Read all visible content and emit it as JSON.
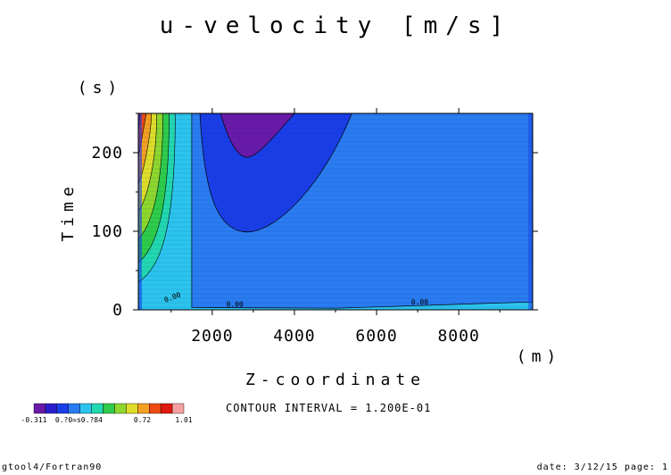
{
  "chart_data": {
    "type": "heatmap",
    "title": "u-velocity [m/s]",
    "xlabel": "Z-coordinate",
    "ylabel": "Time",
    "x_unit": "(m)",
    "y_unit": "(s)",
    "xlim": [
      200,
      9800
    ],
    "ylim": [
      0,
      250
    ],
    "x_ticks": [
      2000,
      4000,
      6000,
      8000
    ],
    "y_ticks": [
      0,
      100,
      200
    ],
    "contour_interval_text": "CONTOUR INTERVAL = 1.200E-01",
    "contour_labels": [
      {
        "text": "0.00",
        "x": 1050,
        "y": 13
      },
      {
        "text": "0.00",
        "x": 2550,
        "y": 4
      },
      {
        "text": "0.00",
        "x": 7050,
        "y": 7
      }
    ],
    "regions": [
      {
        "level_index": 4,
        "note": "near-zero band"
      },
      {
        "level_index": 3,
        "note": "background field"
      },
      {
        "level_index": 2,
        "note": "trough lobe"
      },
      {
        "level_index": 0,
        "note": "minimum core"
      }
    ],
    "colorbar": {
      "colors": [
        "#6a1aa8",
        "#2a1ecc",
        "#1a3ee6",
        "#2a7cf0",
        "#2cc4ee",
        "#22d8b0",
        "#2ecc4a",
        "#8ed82e",
        "#dede2a",
        "#f4a020",
        "#ee4a12",
        "#e01a10",
        "#f6a0a0"
      ],
      "labels": [
        "-0.311",
        "0.?0=s0.?84",
        "0.72",
        "1.01"
      ]
    }
  },
  "footer": {
    "left": "gtool4/Fortran90",
    "right": "date: 3/12/15 page: 1"
  }
}
